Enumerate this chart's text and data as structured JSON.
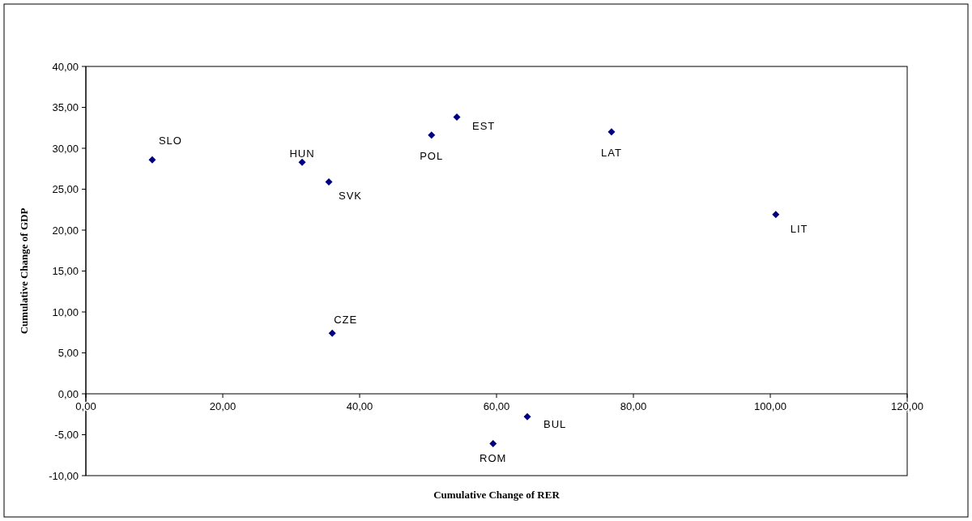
{
  "chart_data": {
    "type": "scatter",
    "xlabel": "Cumulative Change of RER",
    "ylabel": "Cumulative Change of GDP",
    "x": [
      9.7,
      31.6,
      35.5,
      50.5,
      54.2,
      36.0,
      76.8,
      100.8,
      64.5,
      59.5
    ],
    "series": [
      {
        "color": "#000080",
        "values": [
          28.6,
          28.3,
          25.9,
          31.6,
          33.8,
          7.4,
          32.0,
          21.9,
          -2.8,
          -6.1
        ]
      }
    ],
    "marker": "diamond",
    "xlim": [
      0,
      120
    ],
    "ylim": [
      -10,
      40
    ],
    "xticks": [
      {
        "value": 0,
        "label": "0,00"
      },
      {
        "value": 20,
        "label": "20,00"
      },
      {
        "value": 40,
        "label": "40,00"
      },
      {
        "value": 60,
        "label": "60,00"
      },
      {
        "value": 80,
        "label": "80,00"
      },
      {
        "value": 100,
        "label": "100,00"
      },
      {
        "value": 120,
        "label": "120,00"
      }
    ],
    "yticks": [
      {
        "value": -10,
        "label": "-10,00"
      },
      {
        "value": -5,
        "label": "-5,00"
      },
      {
        "value": 0,
        "label": "0,00"
      },
      {
        "value": 5,
        "label": "5,00"
      },
      {
        "value": 10,
        "label": "10,00"
      },
      {
        "value": 15,
        "label": "15,00"
      },
      {
        "value": 20,
        "label": "20,00"
      },
      {
        "value": 25,
        "label": "25,00"
      },
      {
        "value": 30,
        "label": "30,00"
      },
      {
        "value": 35,
        "label": "35,00"
      },
      {
        "value": 40,
        "label": "40,00"
      }
    ],
    "annotations": [
      {
        "text": "SLO",
        "x": 9.7,
        "y": 28.6
      },
      {
        "text": "HUN",
        "x": 31.6,
        "y": 28.3
      },
      {
        "text": "SVK",
        "x": 35.5,
        "y": 25.9
      },
      {
        "text": "POL",
        "x": 50.5,
        "y": 31.6
      },
      {
        "text": "EST",
        "x": 54.2,
        "y": 33.8
      },
      {
        "text": "CZE",
        "x": 36.0,
        "y": 7.4
      },
      {
        "text": "LAT",
        "x": 76.8,
        "y": 32.0
      },
      {
        "text": "LIT",
        "x": 100.8,
        "y": 21.9
      },
      {
        "text": "BUL",
        "x": 64.5,
        "y": -2.8
      },
      {
        "text": "ROM",
        "x": 59.5,
        "y": -6.1
      }
    ]
  }
}
